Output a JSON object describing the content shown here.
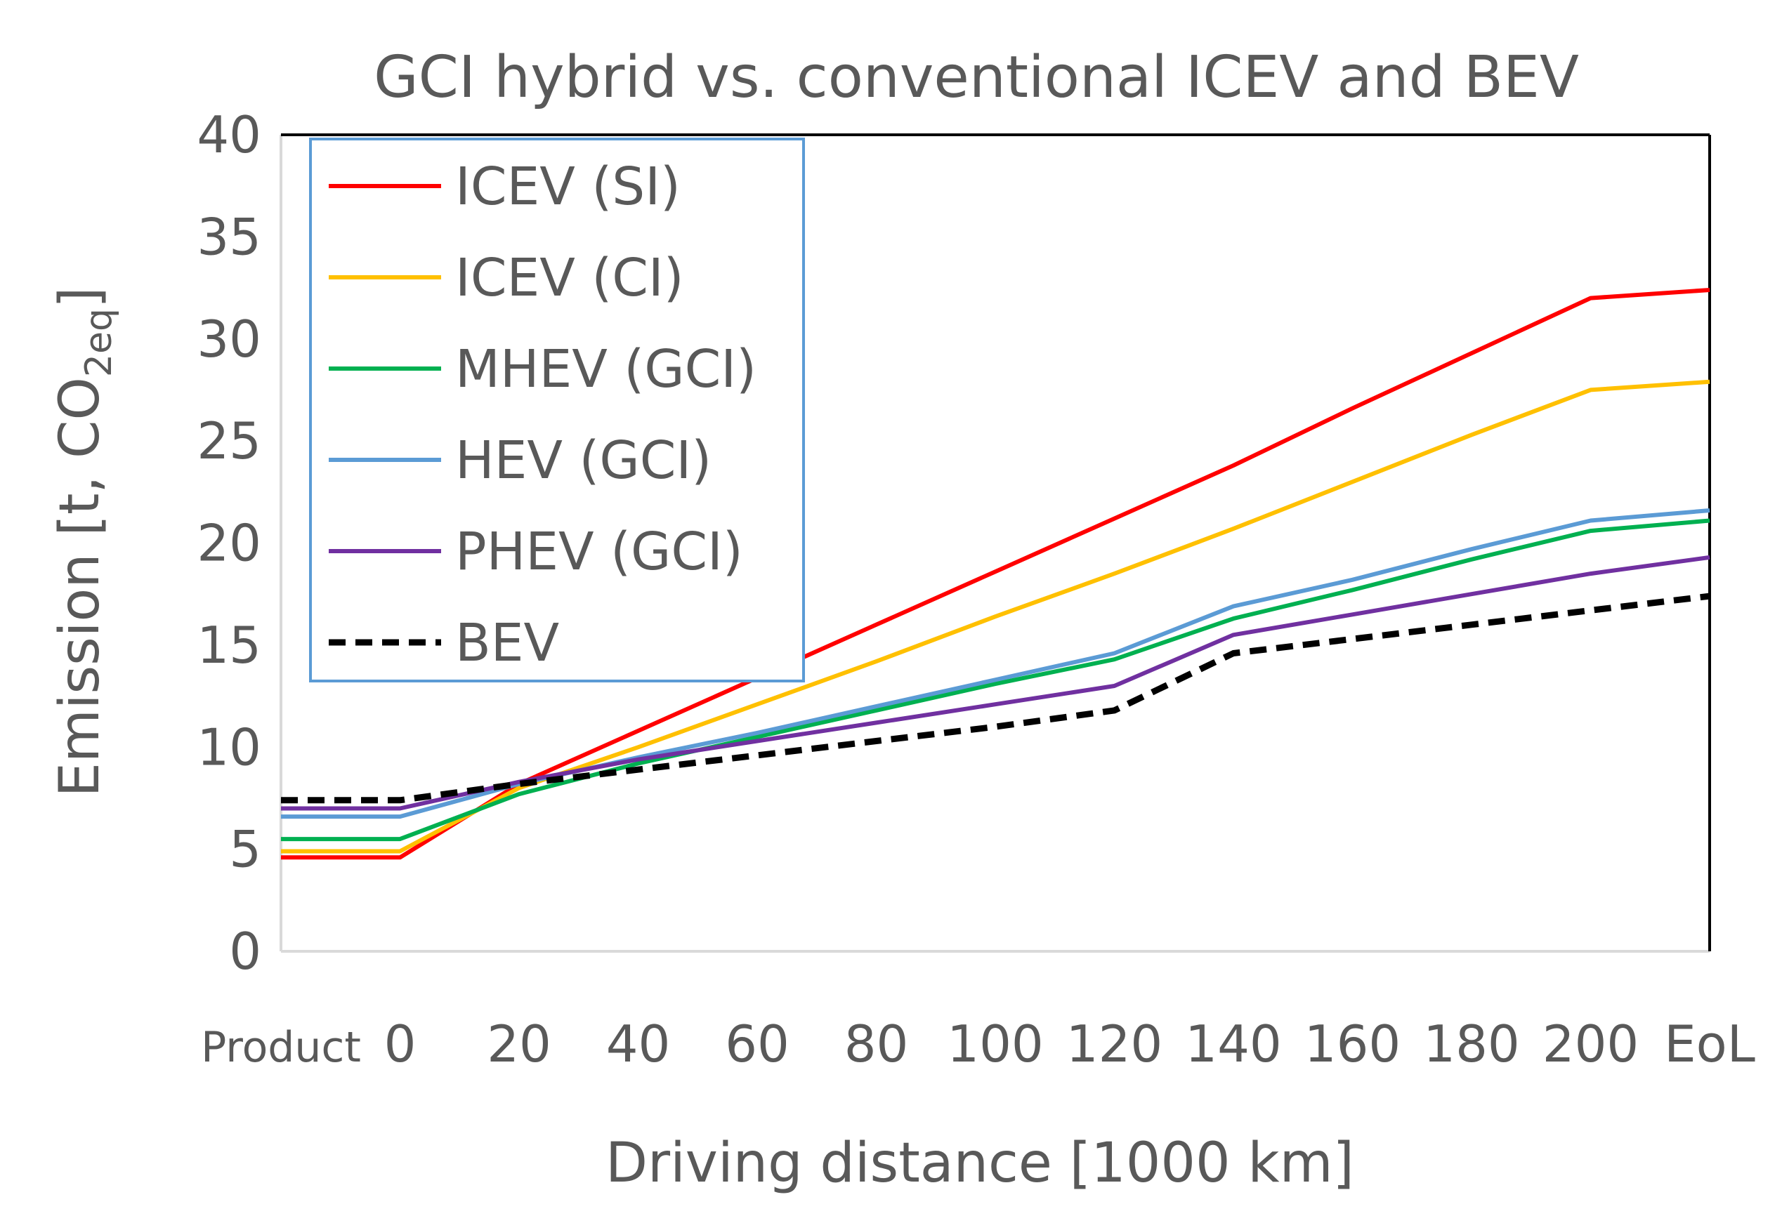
{
  "chart_data": {
    "type": "line",
    "title": "GCI hybrid vs. conventional ICEV and BEV",
    "xlabel": "Driving distance [1000 km]",
    "ylabel": {
      "prefix": "Emission [t, CO",
      "subscript": "2eq",
      "suffix": "]"
    },
    "ylim": [
      0,
      40
    ],
    "yticks": [
      "0",
      "5",
      "10",
      "15",
      "20",
      "25",
      "30",
      "35",
      "40"
    ],
    "categories": [
      "Product",
      "0",
      "20",
      "40",
      "60",
      "80",
      "100",
      "120",
      "140",
      "160",
      "180",
      "200",
      "EoL"
    ],
    "legend_position": "top-left",
    "series": [
      {
        "name": "ICEV (SI)",
        "color": "#ff0000",
        "dashed": false,
        "values": [
          4.6,
          4.6,
          8.2,
          10.8,
          13.4,
          16.0,
          18.6,
          21.2,
          23.8,
          26.6,
          29.3,
          32.0,
          32.4
        ]
      },
      {
        "name": "ICEV (CI)",
        "color": "#ffc000",
        "dashed": false,
        "values": [
          4.9,
          4.9,
          8.0,
          10.0,
          12.1,
          14.2,
          16.4,
          18.5,
          20.7,
          23.0,
          25.3,
          27.5,
          27.9
        ]
      },
      {
        "name": "MHEV (GCI)",
        "color": "#00b050",
        "dashed": false,
        "values": [
          5.5,
          5.5,
          7.7,
          9.2,
          10.5,
          11.8,
          13.1,
          14.3,
          16.3,
          17.7,
          19.2,
          20.6,
          21.1
        ]
      },
      {
        "name": "HEV (GCI)",
        "color": "#5b9bd5",
        "dashed": false,
        "values": [
          6.6,
          6.6,
          8.2,
          9.5,
          10.7,
          12.0,
          13.3,
          14.6,
          16.9,
          18.2,
          19.7,
          21.1,
          21.6
        ]
      },
      {
        "name": "PHEV (GCI)",
        "color": "#7030a0",
        "dashed": false,
        "values": [
          7.0,
          7.0,
          8.3,
          9.4,
          10.3,
          11.2,
          12.1,
          13.0,
          15.5,
          16.5,
          17.5,
          18.5,
          19.3
        ]
      },
      {
        "name": "BEV",
        "color": "#000000",
        "dashed": true,
        "values": [
          7.4,
          7.4,
          8.2,
          8.9,
          9.6,
          10.3,
          11.0,
          11.8,
          14.6,
          15.3,
          16.0,
          16.7,
          17.4
        ]
      }
    ]
  }
}
